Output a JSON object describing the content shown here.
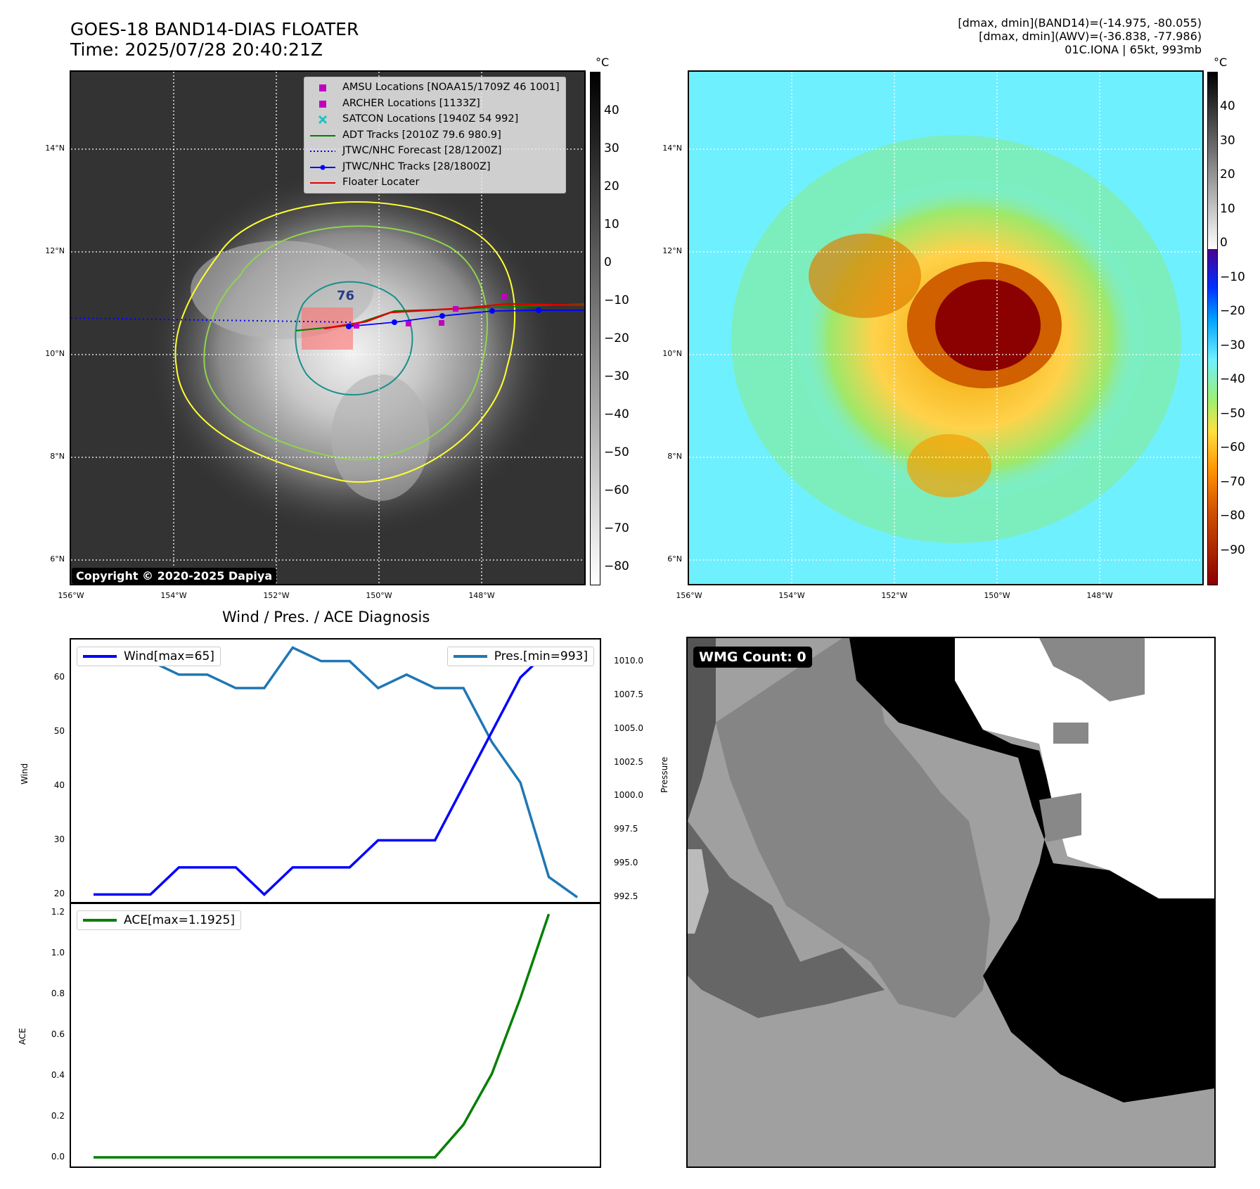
{
  "header": {
    "title_line1": "GOES-18 BAND14-DIAS FLOATER",
    "title_line2": "Time: 2025/07/28 20:40:21Z",
    "info_line1": "[dmax, dmin](BAND14)=(-14.975, -80.055)",
    "info_line2": "[dmax, dmin](AWV)=(-36.838, -77.986)",
    "info_line3": "01C.IONA | 65kt, 993mb"
  },
  "map_left": {
    "unit": "°C",
    "colorbar_ticks": [
      "40",
      "30",
      "20",
      "10",
      "0",
      "−10",
      "−20",
      "−30",
      "−40",
      "−50",
      "−60",
      "−70",
      "−80"
    ],
    "lat_ticks": [
      "14°N",
      "12°N",
      "10°N",
      "8°N",
      "6°N"
    ],
    "lon_ticks": [
      "156°W",
      "154°W",
      "152°W",
      "150°W",
      "148°W"
    ],
    "contour_label": "76",
    "copyright": "Copyright © 2020-2025 Dapiya",
    "legend": [
      {
        "label": "AMSU Locations [NOAA15/1709Z 46 1001]",
        "color": "#c000c0",
        "kind": "square"
      },
      {
        "label": "ARCHER Locations [1133Z]",
        "color": "#c000c0",
        "kind": "square"
      },
      {
        "label": "SATCON Locations [1940Z 54 992]",
        "color": "#20c0c0",
        "kind": "x"
      },
      {
        "label": "ADT Tracks [2010Z 79.6 980.9]",
        "color": "#008000",
        "kind": "line"
      },
      {
        "label": "JTWC/NHC Forecast [28/1200Z]",
        "color": "#0000ff",
        "kind": "dotted"
      },
      {
        "label": "JTWC/NHC Tracks [28/1800Z]",
        "color": "#0000ff",
        "kind": "linedot"
      },
      {
        "label": "Floater Locater",
        "color": "#e00000",
        "kind": "line"
      }
    ],
    "colors": {
      "yellow_contour": "#ffff33",
      "green_contour": "#8fd44f",
      "teal_contour": "#1a8f8a"
    }
  },
  "map_right": {
    "unit": "°C",
    "colorbar_ticks": [
      "40",
      "30",
      "20",
      "10",
      "0",
      "−10",
      "−20",
      "−30",
      "−40",
      "−50",
      "−60",
      "−70",
      "−80",
      "−90"
    ],
    "lat_ticks": [
      "14°N",
      "12°N",
      "10°N",
      "8°N",
      "6°N"
    ],
    "lon_ticks": [
      "156°W",
      "154°W",
      "152°W",
      "150°W",
      "148°W"
    ]
  },
  "diag_title": "Wind / Pres. / ACE Diagnosis",
  "chart_data": [
    {
      "type": "line",
      "title": "Wind / Pres. / ACE Diagnosis",
      "ylabel": "Wind",
      "y2label": "Pressure",
      "ylim": [
        18.5,
        67
      ],
      "y2lim": [
        992.1,
        1011.6
      ],
      "yticks": [
        20,
        30,
        40,
        50,
        60
      ],
      "y2ticks": [
        "992.5",
        "995.0",
        "997.5",
        "1000.0",
        "1002.5",
        "1005.0",
        "1007.5",
        "1010.0"
      ],
      "x": [
        0,
        1,
        2,
        3,
        4,
        5,
        6,
        7,
        8,
        9,
        10,
        11,
        12,
        13,
        14,
        15,
        16,
        17
      ],
      "series": [
        {
          "name": "Wind[max=65]",
          "color": "#0000ff",
          "axis": "left",
          "values": [
            20,
            20,
            20,
            25,
            25,
            25,
            20,
            25,
            25,
            25,
            30,
            30,
            30,
            40,
            50,
            60,
            65,
            null
          ]
        },
        {
          "name": "Pres.[min=993]",
          "color": "#1f77b4",
          "axis": "right",
          "values": [
            1010,
            1010,
            1010,
            1009,
            1009,
            1008,
            1008,
            1011,
            1010,
            1010,
            1008,
            1009,
            1008,
            1008,
            1004,
            1001,
            994,
            992.5
          ]
        }
      ]
    },
    {
      "type": "line",
      "ylabel": "ACE",
      "ylim": [
        -0.045,
        1.245
      ],
      "yticks": [
        "0.0",
        "0.2",
        "0.4",
        "0.6",
        "0.8",
        "1.0",
        "1.2"
      ],
      "x": [
        0,
        1,
        2,
        3,
        4,
        5,
        6,
        7,
        8,
        9,
        10,
        11,
        12,
        13,
        14,
        15,
        16,
        17
      ],
      "series": [
        {
          "name": "ACE[max=1.1925]",
          "color": "#008000",
          "axis": "left",
          "values": [
            0,
            0,
            0,
            0,
            0,
            0,
            0,
            0,
            0,
            0,
            0,
            0,
            0,
            0.16,
            0.41,
            0.78,
            1.1925,
            null
          ]
        }
      ]
    }
  ],
  "wmg": {
    "label": "WMG Count: 0"
  }
}
